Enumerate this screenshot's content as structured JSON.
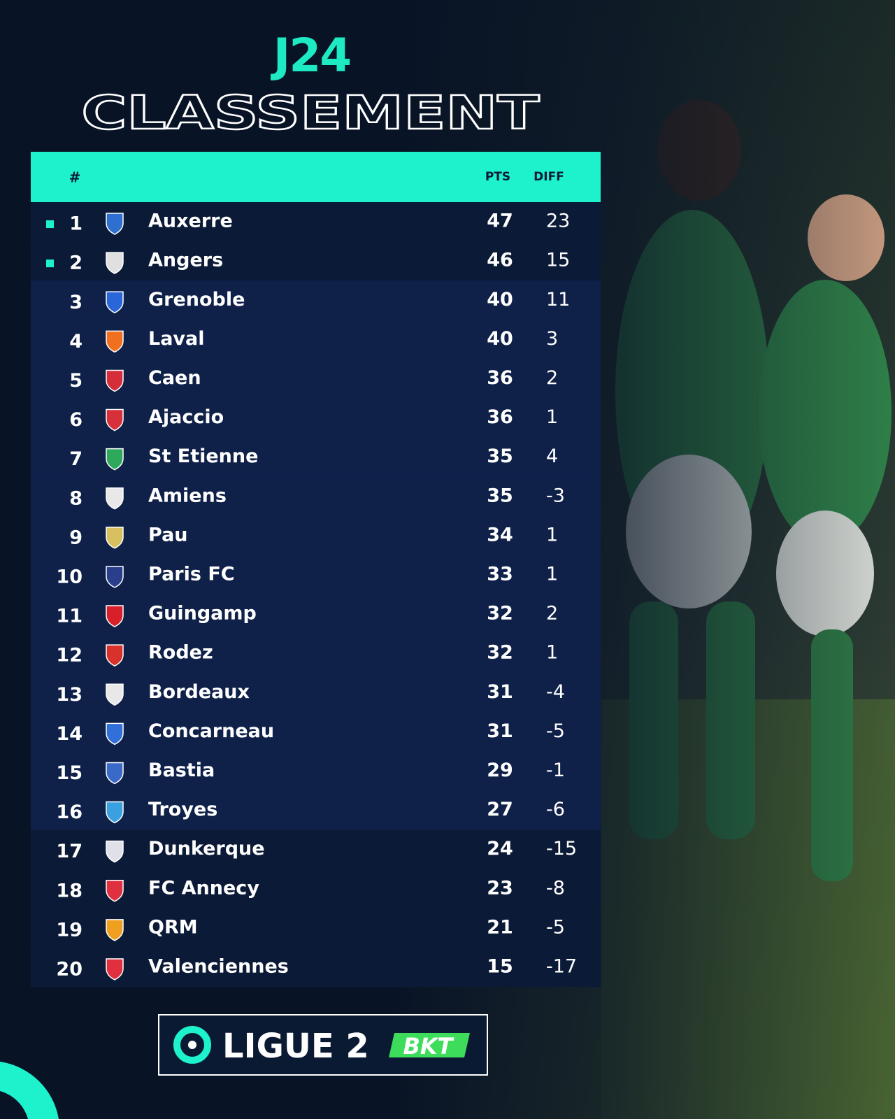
{
  "header": {
    "round": "J24",
    "title": "CLASSEMENT"
  },
  "table": {
    "columns": {
      "rank": "#",
      "points": "PTS",
      "diff": "DIFF"
    },
    "rows": [
      {
        "rank": 1,
        "team": "Auxerre",
        "points": 47,
        "diff": 23
      },
      {
        "rank": 2,
        "team": "Angers",
        "points": 46,
        "diff": 15
      },
      {
        "rank": 3,
        "team": "Grenoble",
        "points": 40,
        "diff": 11
      },
      {
        "rank": 4,
        "team": "Laval",
        "points": 40,
        "diff": 3
      },
      {
        "rank": 5,
        "team": "Caen",
        "points": 36,
        "diff": 2
      },
      {
        "rank": 6,
        "team": "Ajaccio",
        "points": 36,
        "diff": 1
      },
      {
        "rank": 7,
        "team": "St Etienne",
        "points": 35,
        "diff": 4
      },
      {
        "rank": 8,
        "team": "Amiens",
        "points": 35,
        "diff": -3
      },
      {
        "rank": 9,
        "team": "Pau",
        "points": 34,
        "diff": 1
      },
      {
        "rank": 10,
        "team": "Paris FC",
        "points": 33,
        "diff": 1
      },
      {
        "rank": 11,
        "team": "Guingamp",
        "points": 32,
        "diff": 2
      },
      {
        "rank": 12,
        "team": "Rodez",
        "points": 32,
        "diff": 1
      },
      {
        "rank": 13,
        "team": "Bordeaux",
        "points": 31,
        "diff": -4
      },
      {
        "rank": 14,
        "team": "Concarneau",
        "points": 31,
        "diff": -5
      },
      {
        "rank": 15,
        "team": "Bastia",
        "points": 29,
        "diff": -1
      },
      {
        "rank": 16,
        "team": "Troyes",
        "points": 27,
        "diff": -6
      },
      {
        "rank": 17,
        "team": "Dunkerque",
        "points": 24,
        "diff": -15
      },
      {
        "rank": 18,
        "team": "FC Annecy",
        "points": 23,
        "diff": -8
      },
      {
        "rank": 19,
        "team": "QRM",
        "points": 21,
        "diff": -5
      },
      {
        "rank": 20,
        "team": "Valenciennes",
        "points": 15,
        "diff": -17
      }
    ]
  },
  "footer": {
    "league": "LIGUE 2",
    "sponsor": "BKT"
  }
}
